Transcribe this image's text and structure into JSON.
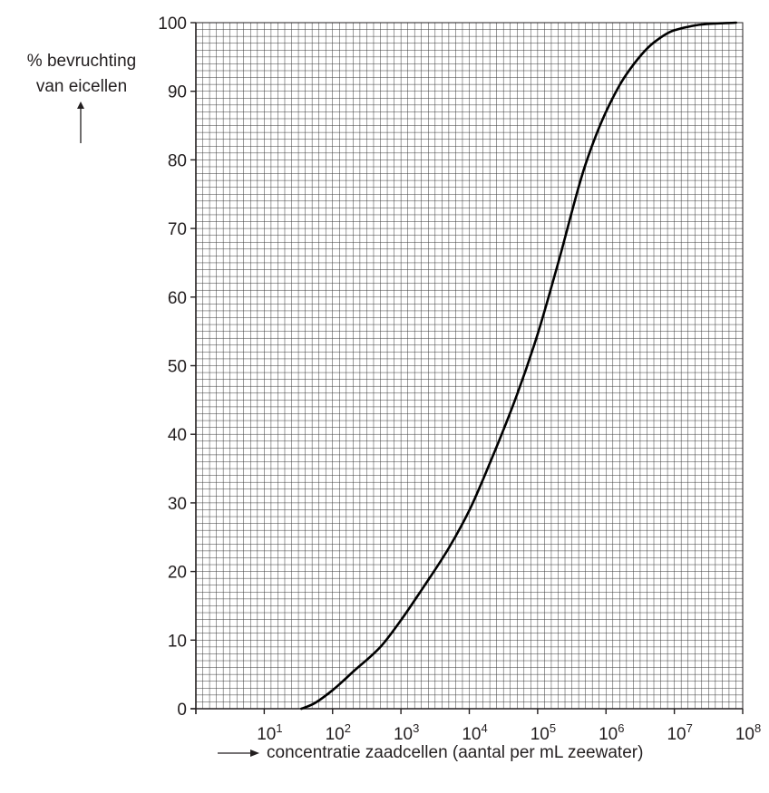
{
  "chart_data": {
    "type": "line",
    "ylabel_lines": [
      "% bevruchting",
      "van eicellen"
    ],
    "xlabel": "concentratie zaadcellen (aantal per mL zeewater)",
    "x_scale": "log10",
    "xlim": [
      1,
      100000000
    ],
    "ylim": [
      0,
      100
    ],
    "y_ticks": [
      "0",
      "10",
      "20",
      "30",
      "40",
      "50",
      "60",
      "70",
      "80",
      "90",
      "100"
    ],
    "x_ticks": [
      {
        "base": "10",
        "exp": "1"
      },
      {
        "base": "10",
        "exp": "2"
      },
      {
        "base": "10",
        "exp": "3"
      },
      {
        "base": "10",
        "exp": "4"
      },
      {
        "base": "10",
        "exp": "5"
      },
      {
        "base": "10",
        "exp": "6"
      },
      {
        "base": "10",
        "exp": "7"
      },
      {
        "base": "10",
        "exp": "8"
      }
    ],
    "grid": true,
    "series": [
      {
        "points": [
          [
            35,
            0
          ],
          [
            50,
            0.6
          ],
          [
            100,
            2.7
          ],
          [
            200,
            5.4
          ],
          [
            500,
            9.0
          ],
          [
            1000,
            12.9
          ],
          [
            2000,
            17.3
          ],
          [
            5000,
            23.4
          ],
          [
            10000,
            28.9
          ],
          [
            20000,
            35.8
          ],
          [
            50000,
            45.8
          ],
          [
            100000,
            54.6
          ],
          [
            200000,
            65.0
          ],
          [
            500000,
            79.3
          ],
          [
            1000000,
            87.0
          ],
          [
            2000000,
            92.5
          ],
          [
            5000000,
            97.1
          ],
          [
            10000000,
            98.9
          ],
          [
            30000000,
            99.8
          ],
          [
            80000000,
            100
          ]
        ]
      }
    ]
  }
}
